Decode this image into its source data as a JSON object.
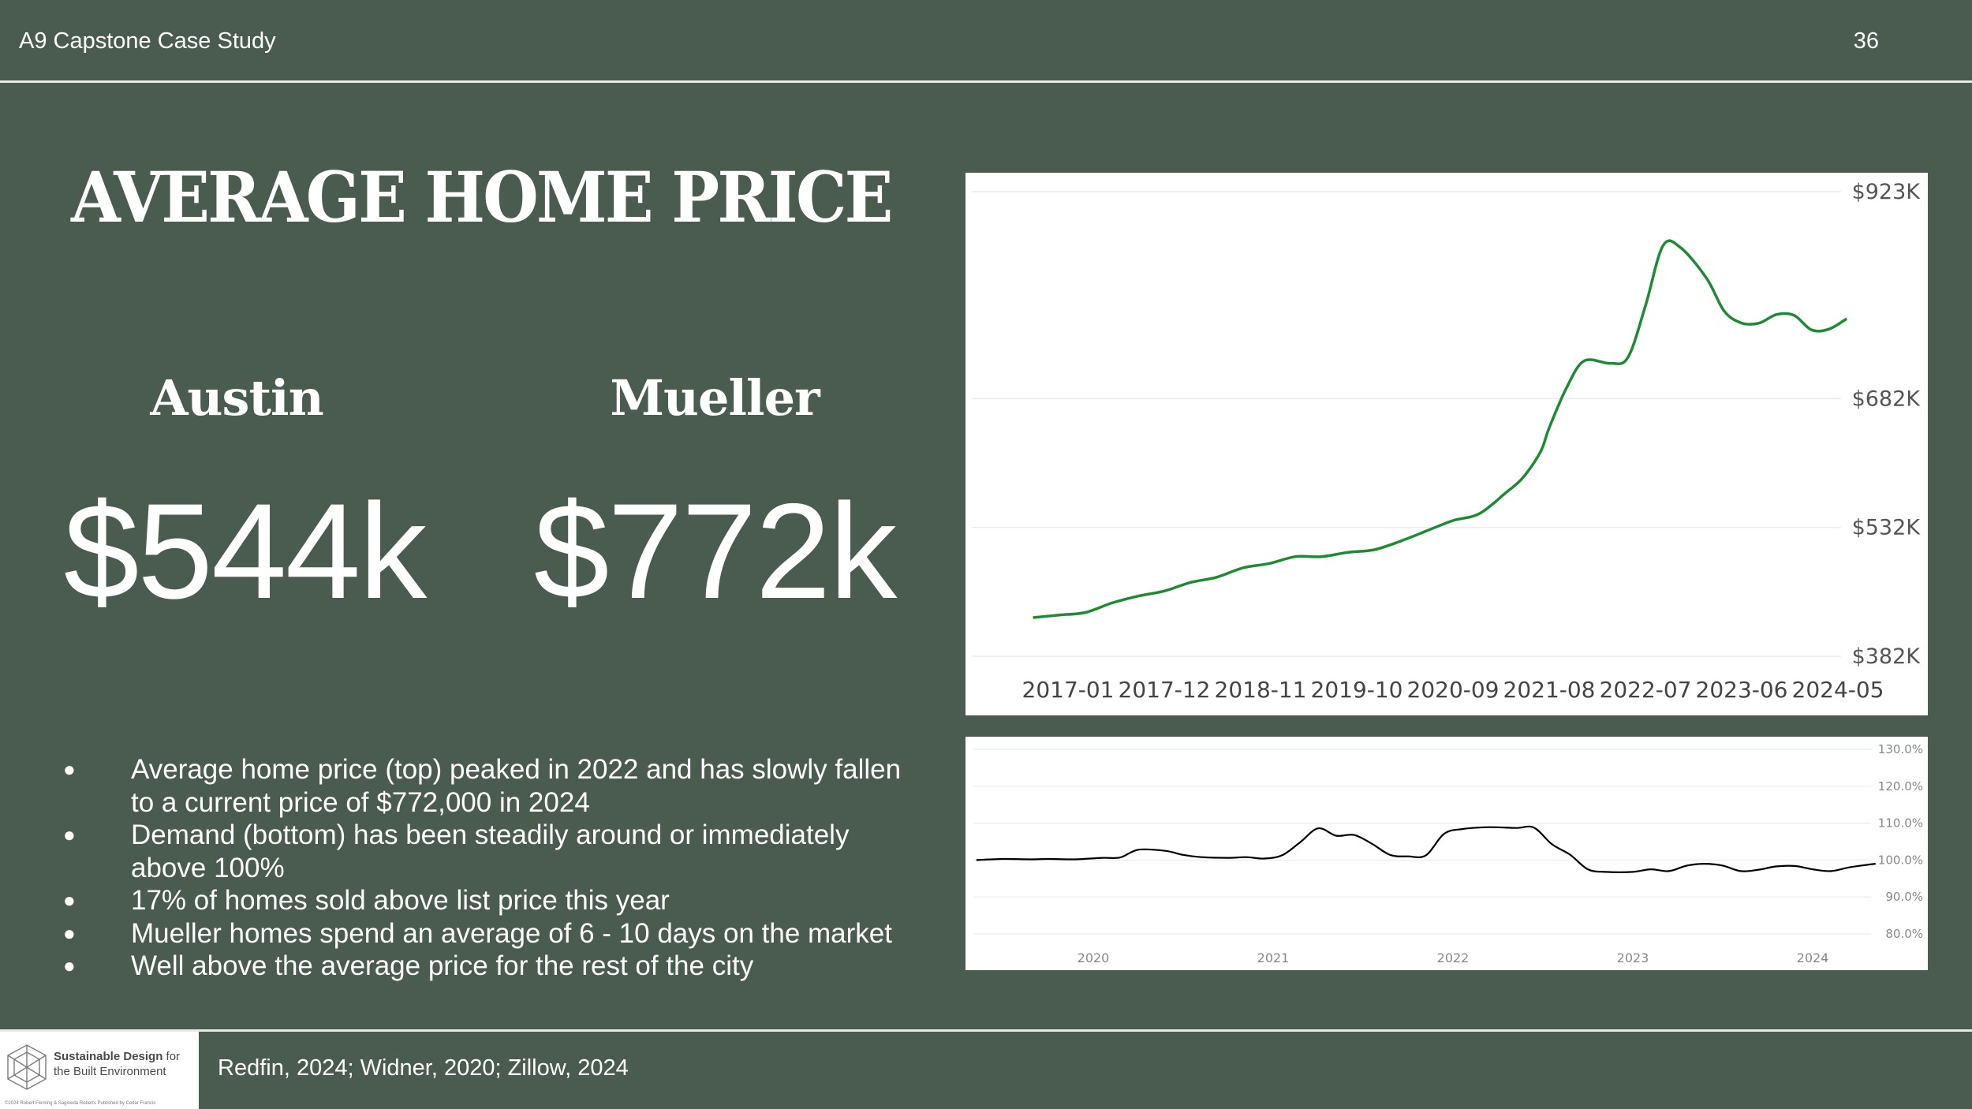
{
  "header": {
    "title": "A9 Capstone Case Study",
    "page_number": "36"
  },
  "heading": "AVERAGE HOME PRICE",
  "stats": [
    {
      "city": "Austin",
      "price": "$544k"
    },
    {
      "city": "Mueller",
      "price": "$772k"
    }
  ],
  "bullets": [
    "Average home price (top) peaked in 2022 and has slowly fallen to a current price of $772,000 in 2024",
    "Demand (bottom) has been steadily around or immediately above 100%",
    "17% of homes sold above list price this year",
    "Mueller homes spend an average of 6 - 10 days on the market",
    "Well above the average price for the rest of the city"
  ],
  "footer": {
    "logo_title_bold": "Sustainable Design",
    "logo_title_rest": " for the Built Environment",
    "logo_fineprint": "©2024 Robert Fleming & Sagineda Roberts  Published by Cedar Francis",
    "sources": "Redfin, 2024; Widner, 2020; Zillow, 2024"
  },
  "chart_data": [
    {
      "type": "line",
      "title": "",
      "xlabel": "",
      "ylabel": "",
      "x_ticks": [
        "2017-01",
        "2017-12",
        "2018-11",
        "2019-10",
        "2020-09",
        "2021-08",
        "2022-07",
        "2023-06",
        "2024-05"
      ],
      "y_ticks": [
        "$923K",
        "$682K",
        "$532K",
        "$382K"
      ],
      "y_tick_values": [
        923,
        682,
        532,
        382
      ],
      "ylim": [
        382,
        923
      ],
      "y_axis_position": "right",
      "grid": "horizontal",
      "line_color": "#1e8a32",
      "series": [
        {
          "name": "",
          "x": [
            "2016-09",
            "2016-12",
            "2017-03",
            "2017-06",
            "2017-09",
            "2017-12",
            "2018-03",
            "2018-06",
            "2018-09",
            "2018-12",
            "2019-03",
            "2019-06",
            "2019-09",
            "2019-12",
            "2020-03",
            "2020-06",
            "2020-09",
            "2020-12",
            "2021-03",
            "2021-05",
            "2021-07",
            "2021-08",
            "2021-10",
            "2021-12",
            "2022-03",
            "2022-05",
            "2022-07",
            "2022-09",
            "2022-11",
            "2023-02",
            "2023-04",
            "2023-06",
            "2023-08",
            "2023-10",
            "2023-12",
            "2024-02",
            "2024-04",
            "2024-06"
          ],
          "values": [
            427,
            430,
            433,
            444,
            452,
            458,
            468,
            474,
            485,
            490,
            498,
            498,
            503,
            506,
            516,
            528,
            540,
            548,
            572,
            590,
            620,
            648,
            695,
            726,
            723,
            730,
            790,
            860,
            858,
            822,
            784,
            770,
            770,
            780,
            779,
            762,
            763,
            775
          ]
        }
      ]
    },
    {
      "type": "line",
      "title": "",
      "xlabel": "",
      "ylabel": "",
      "x_ticks": [
        "2020",
        "2021",
        "2022",
        "2023",
        "2024"
      ],
      "y_ticks": [
        "130.0%",
        "120.0%",
        "110.0%",
        "100.0%",
        "90.0%",
        "80.0%"
      ],
      "y_tick_values": [
        130,
        120,
        110,
        100,
        90,
        80
      ],
      "ylim": [
        76,
        130
      ],
      "y_axis_position": "right",
      "grid": "horizontal",
      "line_color": "#000000",
      "series": [
        {
          "name": "",
          "x": [
            2019.35,
            2019.5,
            2019.65,
            2019.75,
            2019.9,
            2020.05,
            2020.15,
            2020.25,
            2020.4,
            2020.5,
            2020.6,
            2020.75,
            2020.85,
            2020.95,
            2021.05,
            2021.15,
            2021.25,
            2021.35,
            2021.45,
            2021.55,
            2021.65,
            2021.75,
            2021.85,
            2021.95,
            2022.05,
            2022.2,
            2022.35,
            2022.45,
            2022.55,
            2022.65,
            2022.75,
            2022.85,
            2023.0,
            2023.1,
            2023.2,
            2023.3,
            2023.4,
            2023.5,
            2023.6,
            2023.7,
            2023.8,
            2023.9,
            2024.0,
            2024.1,
            2024.2,
            2024.3,
            2024.35
          ],
          "values": [
            100,
            100.3,
            100.2,
            100.3,
            100.2,
            100.6,
            100.7,
            102.8,
            102.5,
            101.4,
            100.8,
            100.6,
            100.8,
            100.4,
            101.3,
            104.8,
            108.6,
            106.6,
            106.8,
            104.4,
            101.4,
            101,
            101.3,
            107.1,
            108.4,
            108.9,
            108.7,
            108.8,
            104.3,
            101.5,
            97.5,
            96.8,
            96.8,
            97.5,
            97,
            98.5,
            99,
            98.5,
            97,
            97.4,
            98.3,
            98.4,
            97.5,
            97,
            98,
            98.7,
            99
          ]
        }
      ]
    }
  ]
}
